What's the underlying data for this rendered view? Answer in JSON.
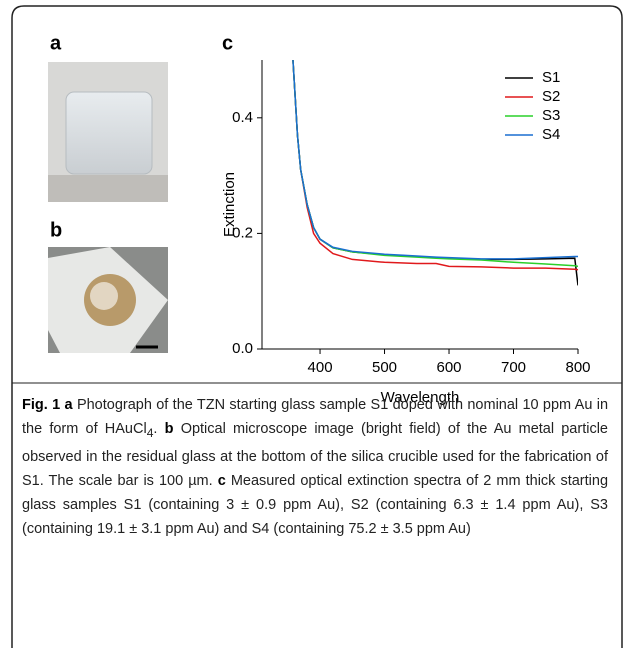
{
  "panels": {
    "a": "a",
    "b": "b"
  },
  "chart_data": {
    "type": "line",
    "panel_label": "c",
    "x_label": "Wavelength",
    "y_label": "Extinction",
    "xlim": [
      310,
      800
    ],
    "xticks": [
      400,
      500,
      600,
      700,
      800
    ],
    "ylim": [
      0,
      0.5
    ],
    "yticks": [
      {
        "value": 0,
        "label": "0.0"
      },
      0.2,
      0.4
    ],
    "legend": "top-right",
    "x": [
      358,
      365,
      370,
      380,
      390,
      400,
      420,
      450,
      500,
      550,
      580,
      600,
      650,
      700,
      750,
      795,
      800
    ],
    "series": [
      {
        "name": "S1",
        "color": "#000000",
        "values": [
          0.5,
          0.37,
          0.31,
          0.25,
          0.21,
          0.19,
          0.175,
          0.168,
          0.163,
          0.16,
          0.158,
          0.157,
          0.155,
          0.155,
          0.156,
          0.157,
          0.11
        ]
      },
      {
        "name": "S2",
        "color": "#e0191c",
        "values": [
          0.5,
          0.37,
          0.31,
          0.245,
          0.2,
          0.183,
          0.165,
          0.155,
          0.15,
          0.148,
          0.148,
          0.143,
          0.142,
          0.14,
          0.14,
          0.138,
          0.137
        ]
      },
      {
        "name": "S3",
        "color": "#2ad02a",
        "values": [
          0.5,
          0.37,
          0.31,
          0.25,
          0.21,
          0.19,
          0.175,
          0.168,
          0.162,
          0.159,
          0.157,
          0.156,
          0.154,
          0.15,
          0.147,
          0.144,
          0.143
        ]
      },
      {
        "name": "S4",
        "color": "#1a6fd0",
        "values": [
          0.5,
          0.37,
          0.31,
          0.25,
          0.21,
          0.19,
          0.176,
          0.169,
          0.164,
          0.161,
          0.159,
          0.158,
          0.156,
          0.156,
          0.158,
          0.16,
          0.16
        ]
      }
    ]
  },
  "caption": {
    "fig": "Fig. 1",
    "a_label": "a",
    "a_text": "Photograph of the TZN starting glass sample S1 doped with nominal 10 ppm Au in the form of HAuCl",
    "a_sub": "4",
    "a_end": ".",
    "b_label": "b",
    "b_text": "Optical microscope image (bright field) of the Au metal particle observed in the residual glass at the bottom of the silica crucible used for the fabrication of S1. The scale bar is 100 µm.",
    "c_label": "c",
    "c_text": "Measured optical extinction spectra of 2 mm thick starting glass samples S1 (containing 3 ± 0.9 ppm Au), S2 (containing 6.3 ± 1.4 ppm Au), S3 (containing 19.1 ± 3.1 ppm Au) and S4 (containing 75.2 ± 3.5 ppm Au)"
  }
}
